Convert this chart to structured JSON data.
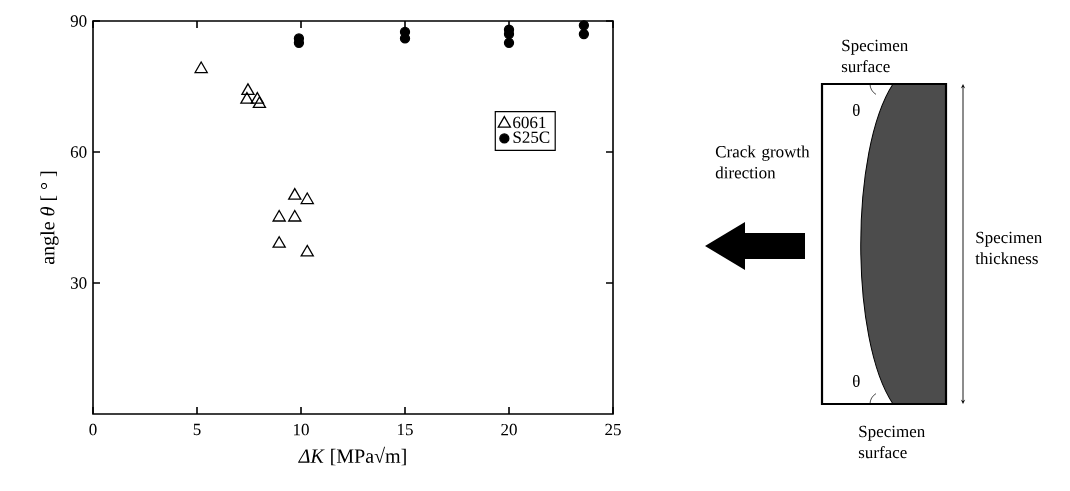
{
  "chart_data": {
    "type": "scatter",
    "xlabel": "*ΔK* [MPa√m]",
    "ylabel": "angle *θ* [ ° ]",
    "xlim": [
      0,
      25
    ],
    "ylim": [
      0,
      90
    ],
    "xticks": [
      0,
      5,
      10,
      15,
      20,
      25
    ],
    "yticks": [
      30,
      60,
      90
    ],
    "legend": "right",
    "series": [
      {
        "name": "6061",
        "color": "#000000",
        "marker": "triangle",
        "x": [
          5.2,
          7.45,
          7.4,
          7.9,
          8.0,
          9.7,
          10.3,
          8.95,
          9.7,
          8.95,
          10.3
        ],
        "values": [
          79,
          74,
          72,
          72,
          71,
          50,
          49,
          45,
          45,
          39,
          37
        ]
      },
      {
        "name": "S25C",
        "color": "#000000",
        "marker": "circle",
        "x": [
          9.9,
          9.9,
          15.0,
          15.0,
          20.0,
          20.0,
          20.0,
          23.6,
          23.6
        ],
        "values": [
          86,
          85,
          87.5,
          86,
          88,
          87,
          85,
          89,
          87
        ]
      }
    ],
    "annotations": [
      "Specimen surface",
      "Crack growth direction",
      "Specimen thickness",
      "Specimen surface",
      "θ",
      "θ"
    ]
  }
}
